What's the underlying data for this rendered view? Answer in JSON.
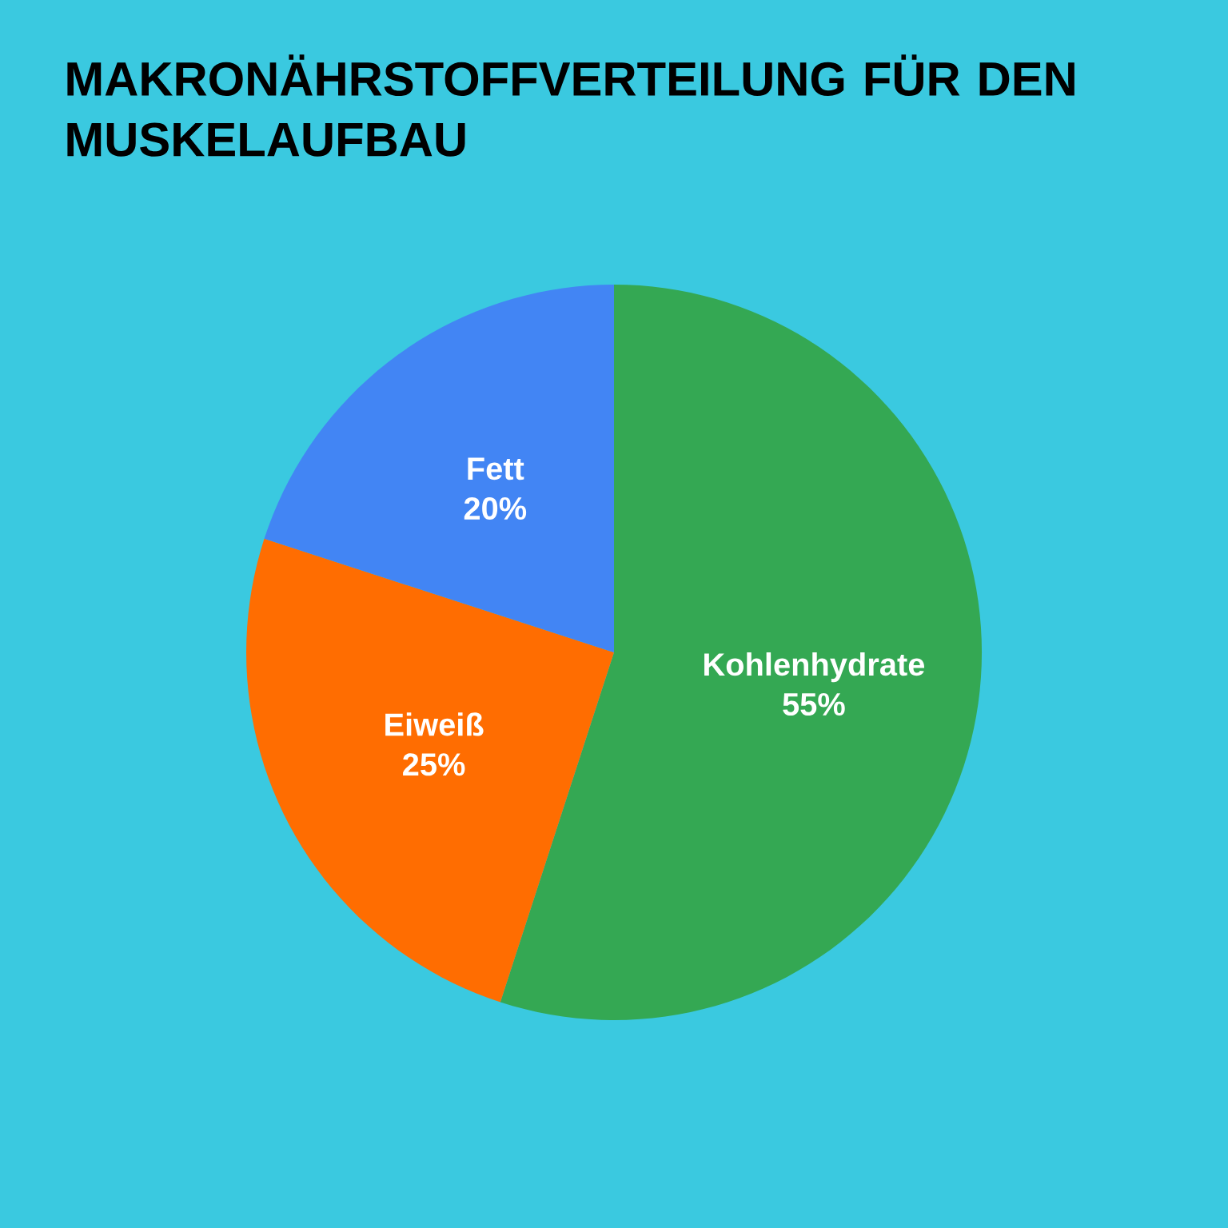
{
  "chart_data": {
    "type": "pie",
    "title": "MAKRONÄHRSTOFFVERTEILUNG FÜR DEN MUSKELAUFBAU",
    "categories": [
      "Kohlenhydrate",
      "Eiweiß",
      "Fett"
    ],
    "values": [
      55,
      25,
      20
    ],
    "value_labels": [
      "55%",
      "25%",
      "20%"
    ],
    "colors": [
      "#34a853",
      "#ff6d01",
      "#4285f4"
    ]
  }
}
